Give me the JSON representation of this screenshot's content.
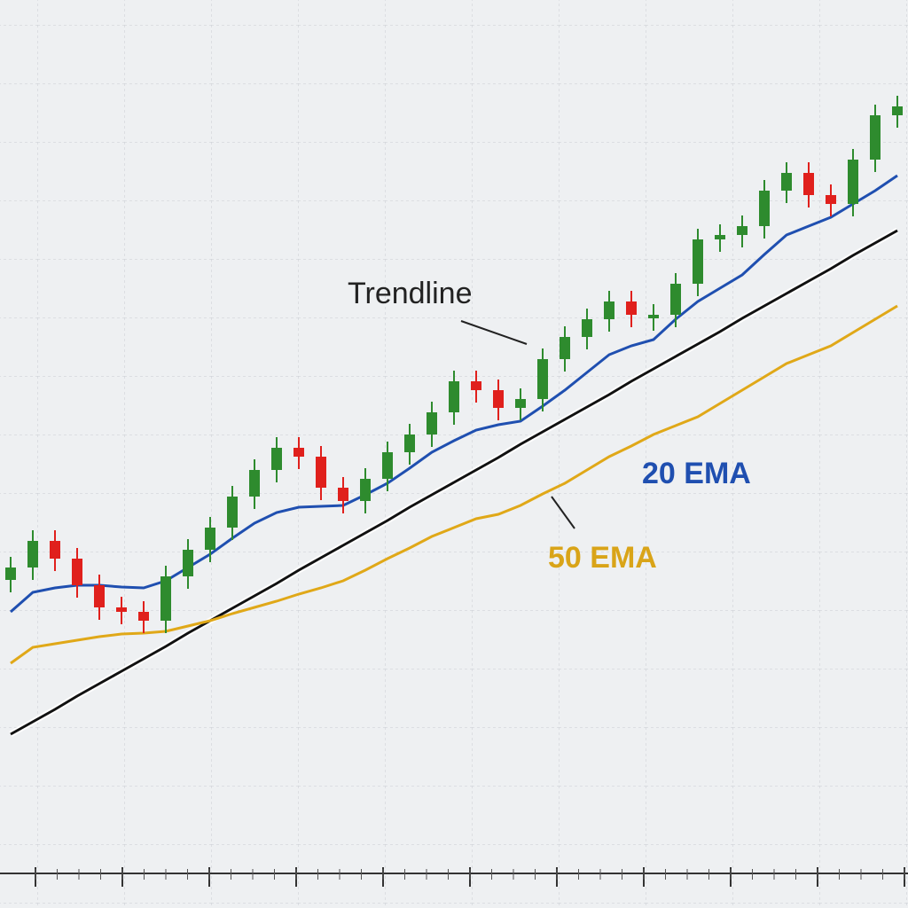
{
  "chart_data": {
    "type": "candlestick",
    "categories": [
      null,
      null,
      null,
      null,
      null,
      null,
      null,
      null,
      null,
      null,
      null,
      null,
      null,
      null,
      null,
      null,
      null,
      null,
      null,
      null,
      null,
      null,
      null,
      null,
      null,
      null,
      null,
      null,
      null,
      null,
      null,
      null,
      null,
      null,
      null,
      null,
      null,
      null,
      null,
      null,
      null
    ],
    "open": [
      370,
      384,
      414,
      394,
      364,
      339,
      334,
      324,
      374,
      404,
      429,
      464,
      494,
      519,
      509,
      474,
      459,
      484,
      514,
      534,
      559,
      594,
      584,
      564,
      574,
      619,
      644,
      664,
      684,
      665,
      669,
      704,
      754,
      759,
      769,
      809,
      829,
      804,
      794,
      844,
      894
    ],
    "high": [
      396,
      426,
      426,
      406,
      376,
      351,
      346,
      386,
      416,
      441,
      476,
      506,
      531,
      531,
      521,
      486,
      496,
      526,
      546,
      571,
      606,
      606,
      596,
      586,
      631,
      656,
      676,
      696,
      696,
      681,
      716,
      766,
      771,
      781,
      821,
      841,
      841,
      816,
      856,
      906,
      916
    ],
    "low": [
      356,
      370,
      380,
      350,
      325,
      320,
      310,
      310,
      360,
      390,
      415,
      450,
      480,
      495,
      460,
      445,
      445,
      470,
      500,
      520,
      545,
      570,
      550,
      550,
      560,
      605,
      630,
      650,
      655,
      651,
      655,
      690,
      740,
      745,
      755,
      795,
      790,
      780,
      780,
      830,
      880
    ],
    "close": [
      384,
      414,
      394,
      364,
      339,
      334,
      324,
      374,
      404,
      429,
      464,
      494,
      519,
      509,
      474,
      459,
      484,
      514,
      534,
      559,
      594,
      584,
      564,
      574,
      619,
      644,
      664,
      684,
      669,
      669,
      704,
      754,
      759,
      769,
      809,
      829,
      804,
      794,
      844,
      894,
      904
    ],
    "up_color": "#2e8b2e",
    "down_color": "#e0201c",
    "series": [
      {
        "name": "Trendline",
        "color": "#111111",
        "values": [
          196,
          210,
          224,
          239,
          253,
          267,
          281,
          295,
          310,
          324,
          338,
          352,
          366,
          381,
          395,
          409,
          423,
          437,
          452,
          466,
          480,
          494,
          508,
          523,
          537,
          551,
          565,
          579,
          594,
          608,
          622,
          636,
          650,
          665,
          679,
          693,
          707,
          721,
          736,
          750,
          764
        ]
      },
      {
        "name": "20 EMA",
        "color": "#1f4fb0",
        "values": [
          334,
          356,
          361,
          364,
          364,
          362,
          361,
          369,
          384,
          399,
          417,
          434,
          446,
          452,
          453,
          454,
          466,
          479,
          496,
          514,
          527,
          539,
          545,
          549,
          566,
          584,
          604,
          624,
          634,
          641,
          664,
          684,
          699,
          714,
          737,
          759,
          769,
          779,
          794,
          809,
          826
        ]
      },
      {
        "name": "50 EMA",
        "color": "#e0a818",
        "values": [
          276,
          294,
          298,
          302,
          306,
          309,
          310,
          312,
          318,
          324,
          332,
          339,
          346,
          354,
          361,
          369,
          381,
          394,
          406,
          419,
          429,
          439,
          444,
          454,
          467,
          479,
          494,
          509,
          521,
          534,
          544,
          554,
          569,
          584,
          599,
          614,
          624,
          634,
          649,
          664,
          679
        ]
      }
    ],
    "ylim": [
      0,
      1024
    ]
  }
}
